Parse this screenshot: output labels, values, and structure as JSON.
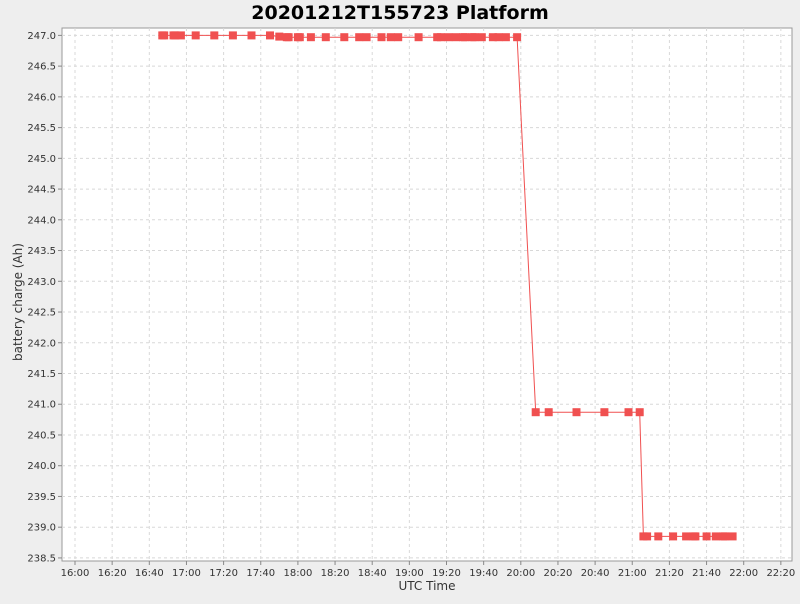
{
  "chart_data": {
    "type": "line",
    "title": "20201212T155723 Platform",
    "xlabel": "UTC Time",
    "ylabel": "battery charge (Ah)",
    "x_ticks": [
      "16:00",
      "16:20",
      "16:40",
      "17:00",
      "17:20",
      "17:40",
      "18:00",
      "18:20",
      "18:40",
      "19:00",
      "19:20",
      "19:40",
      "20:00",
      "20:20",
      "20:40",
      "21:00",
      "21:20",
      "21:40",
      "22:00",
      "22:20"
    ],
    "y_ticks": [
      "238.5",
      "239.0",
      "239.5",
      "240.0",
      "240.5",
      "241.0",
      "241.5",
      "242.0",
      "242.5",
      "243.0",
      "243.5",
      "244.0",
      "244.5",
      "245.0",
      "245.5",
      "246.0",
      "246.5",
      "247.0"
    ],
    "xlim": [
      "15:53",
      "22:26"
    ],
    "ylim": [
      238.45,
      247.12
    ],
    "grid": true,
    "color": "#f05050",
    "series": [
      {
        "name": "",
        "points": [
          [
            "16:47",
            247.0
          ],
          [
            "16:48",
            247.0
          ],
          [
            "16:53",
            247.0
          ],
          [
            "16:54",
            247.0
          ],
          [
            "16:57",
            247.0
          ],
          [
            "17:05",
            247.0
          ],
          [
            "17:15",
            247.0
          ],
          [
            "17:25",
            247.0
          ],
          [
            "17:35",
            247.0
          ],
          [
            "17:45",
            247.0
          ],
          [
            "17:50",
            246.98
          ],
          [
            "17:54",
            246.97
          ],
          [
            "17:55",
            246.97
          ],
          [
            "18:00",
            246.97
          ],
          [
            "18:01",
            246.97
          ],
          [
            "18:07",
            246.97
          ],
          [
            "18:15",
            246.97
          ],
          [
            "18:25",
            246.97
          ],
          [
            "18:33",
            246.97
          ],
          [
            "18:37",
            246.97
          ],
          [
            "18:45",
            246.97
          ],
          [
            "18:50",
            246.97
          ],
          [
            "18:54",
            246.97
          ],
          [
            "19:05",
            246.97
          ],
          [
            "19:15",
            246.97
          ],
          [
            "19:17",
            246.97
          ],
          [
            "19:21",
            246.97
          ],
          [
            "19:25",
            246.97
          ],
          [
            "19:29",
            246.97
          ],
          [
            "19:30",
            246.97
          ],
          [
            "19:34",
            246.97
          ],
          [
            "19:35",
            246.97
          ],
          [
            "19:39",
            246.97
          ],
          [
            "19:45",
            246.97
          ],
          [
            "19:48",
            246.97
          ],
          [
            "19:52",
            246.97
          ],
          [
            "19:58",
            246.97
          ],
          [
            "20:08",
            240.87
          ],
          [
            "20:15",
            240.87
          ],
          [
            "20:30",
            240.87
          ],
          [
            "20:45",
            240.87
          ],
          [
            "20:58",
            240.87
          ],
          [
            "21:04",
            240.87
          ],
          [
            "21:06",
            238.85
          ],
          [
            "21:08",
            238.85
          ],
          [
            "21:14",
            238.85
          ],
          [
            "21:22",
            238.85
          ],
          [
            "21:29",
            238.85
          ],
          [
            "21:33",
            238.85
          ],
          [
            "21:34",
            238.85
          ],
          [
            "21:40",
            238.85
          ],
          [
            "21:45",
            238.85
          ],
          [
            "21:49",
            238.85
          ],
          [
            "21:50",
            238.85
          ],
          [
            "21:54",
            238.85
          ]
        ]
      }
    ]
  }
}
